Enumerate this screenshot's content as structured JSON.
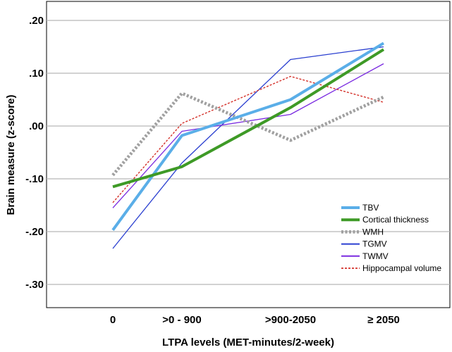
{
  "chart_data": {
    "type": "line",
    "title": "",
    "xlabel": "LTPA levels (MET-minutes/2-week)",
    "ylabel": "Brain measure  (z-score)",
    "categories": [
      "0",
      ">0 - 900",
      ">900-2050",
      "≥ 2050"
    ],
    "ylim": [
      -0.35,
      0.22
    ],
    "yticks": [
      0.2,
      0.1,
      0.0,
      -0.1,
      -0.2,
      -0.3
    ],
    "ytick_labels": [
      ".20",
      ".10",
      ".00",
      "-.10",
      "-.20",
      "-.30"
    ],
    "grid": "horizontal",
    "legend_position": "bottom-right",
    "series": [
      {
        "name": "TBV",
        "values": [
          -0.197,
          -0.018,
          0.05,
          0.157
        ],
        "color": "#5aaee8",
        "style": "solid-thick"
      },
      {
        "name": "Cortical thickness",
        "values": [
          -0.115,
          -0.077,
          0.035,
          0.145
        ],
        "color": "#3e9a26",
        "style": "solid-thick"
      },
      {
        "name": "WMH",
        "values": [
          -0.093,
          0.062,
          -0.027,
          0.055
        ],
        "color": "#a0a0a0",
        "style": "dotted-thick"
      },
      {
        "name": "TGMV",
        "values": [
          -0.232,
          -0.07,
          0.126,
          0.15
        ],
        "color": "#2a3fd0",
        "style": "solid-thin"
      },
      {
        "name": "TWMV",
        "values": [
          -0.155,
          -0.01,
          0.022,
          0.118
        ],
        "color": "#7a2ae0",
        "style": "solid-thin"
      },
      {
        "name": "Hippocampal volume",
        "values": [
          -0.145,
          0.005,
          0.094,
          0.045
        ],
        "color": "#d4312a",
        "style": "dashed"
      }
    ]
  }
}
